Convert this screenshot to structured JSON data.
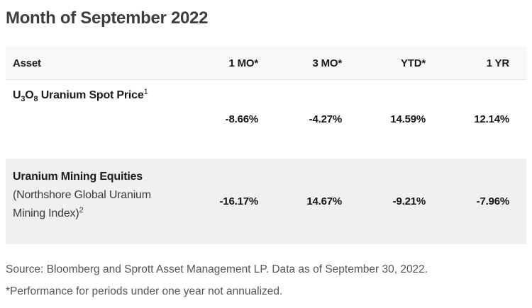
{
  "title": "Month of September 2022",
  "table": {
    "headers": {
      "asset": "Asset",
      "cols": [
        "1 MO*",
        "3 MO*",
        "YTD*",
        "1 YR"
      ]
    },
    "rows": [
      {
        "name": {
          "p1": "U",
          "sub1": "3",
          "p2": "O",
          "sub2": "8",
          "p3": " Uranium Spot Price"
        },
        "footnote_ref": "1",
        "values": [
          "-8.66%",
          "-4.27%",
          "14.59%",
          "12.14%"
        ]
      },
      {
        "name_bold": "Uranium Mining Equities",
        "name_sub_line1": "(Northshore Global Uranium",
        "name_sub_line2": "Mining Index)",
        "footnote_ref": "2",
        "values": [
          "-16.17%",
          "14.67%",
          "-9.21%",
          "-7.96%"
        ]
      }
    ]
  },
  "footer": {
    "source_line": "Source: Bloomberg and Sprott Asset Management LP. Data as of September 30, 2022.",
    "footnote_line": "*Performance for periods under one year not annualized."
  },
  "colors": {
    "title_text": "#3d3d3d",
    "table_text": "#1c1c1c",
    "header_bg": "#f8f8f8",
    "alt_row_bg": "#f0f0f0",
    "header_divider": "#e5e5e5",
    "footer_text": "#55565a",
    "page_bg": "#ffffff"
  }
}
